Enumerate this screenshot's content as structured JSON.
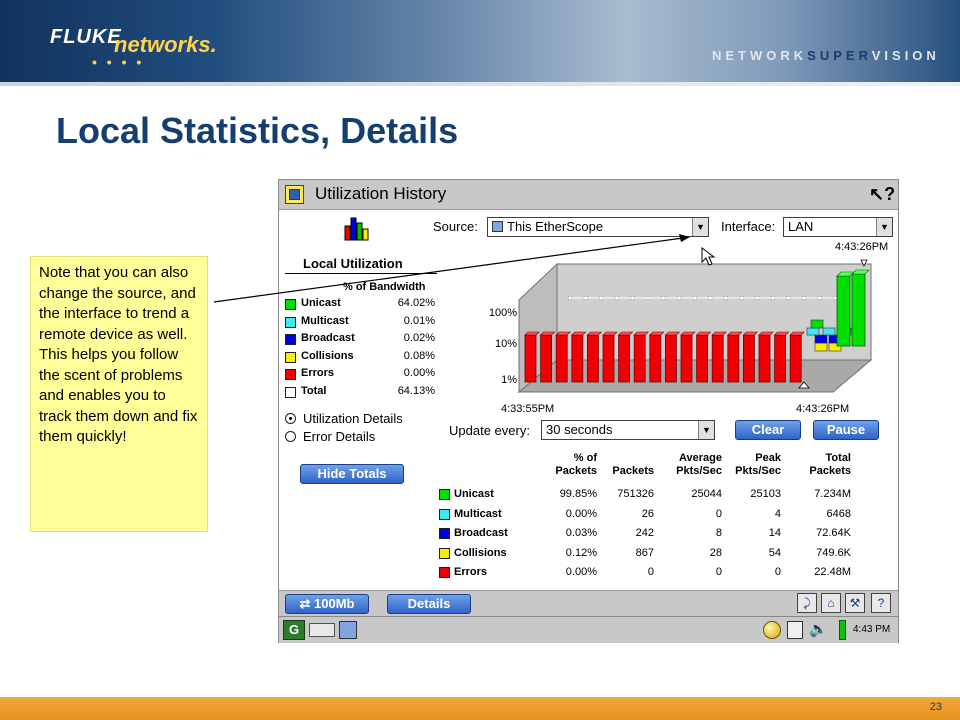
{
  "header": {
    "brand_fluke": "FLUKE",
    "brand_networks": "networks.",
    "brand_dots": "• • • •",
    "tagline_prefix": "NETWORK",
    "tagline_highlight": "SUPER",
    "tagline_suffix": "VISION"
  },
  "slide": {
    "title": "Local Statistics, Details",
    "page_number": "23"
  },
  "callout": {
    "text": "Note that you can also change the source, and the interface to trend a remote device as well.  This helps you follow the scent of problems and enables you to track them down and fix them quickly!"
  },
  "app": {
    "window_title": "Utilization History",
    "source_label": "Source:",
    "source_value": "This EtherScope",
    "interface_label": "Interface:",
    "interface_value": "LAN",
    "timestamp_top": "4:43:26PM",
    "local_util_title": "Local Utilization",
    "pct_bandwidth_header": "% of Bandwidth",
    "legend": [
      {
        "name": "Unicast",
        "value": "64.02%",
        "color": "#00e000"
      },
      {
        "name": "Multicast",
        "value": "0.01%",
        "color": "#40e8f0"
      },
      {
        "name": "Broadcast",
        "value": "0.02%",
        "color": "#0000e0"
      },
      {
        "name": "Collisions",
        "value": "0.08%",
        "color": "#f8f000"
      },
      {
        "name": "Errors",
        "value": "0.00%",
        "color": "#f00000"
      },
      {
        "name": "Total",
        "value": "64.13%",
        "color": "#ffffff"
      }
    ],
    "radio_utilization": "Utilization Details",
    "radio_error": "Error Details",
    "hide_totals": "Hide Totals",
    "update_label": "Update every:",
    "update_value": "30 seconds",
    "clear_button": "Clear",
    "pause_button": "Pause",
    "chart": {
      "y_ticks": [
        "100%",
        "10%",
        "1%"
      ],
      "x_start": "4:33:55PM",
      "x_end": "4:43:26PM"
    },
    "stats": {
      "headers": [
        [
          "% of",
          "Packets"
        ],
        [
          "",
          "Packets"
        ],
        [
          "Average",
          "Pkts/Sec"
        ],
        [
          "Peak",
          "Pkts/Sec"
        ],
        [
          "Total",
          "Packets"
        ]
      ],
      "rows": [
        {
          "name": "Unicast",
          "color": "#00e000",
          "cells": [
            "99.85%",
            "751326",
            "25044",
            "25103",
            "7.234M"
          ]
        },
        {
          "name": "Multicast",
          "color": "#40e8f0",
          "cells": [
            "0.00%",
            "26",
            "0",
            "4",
            "6468"
          ]
        },
        {
          "name": "Broadcast",
          "color": "#0000e0",
          "cells": [
            "0.03%",
            "242",
            "8",
            "14",
            "72.64K"
          ]
        },
        {
          "name": "Collisions",
          "color": "#f8f000",
          "cells": [
            "0.12%",
            "867",
            "28",
            "54",
            "749.6K"
          ]
        },
        {
          "name": "Errors",
          "color": "#f00000",
          "cells": [
            "0.00%",
            "0",
            "0",
            "0",
            "22.48M"
          ]
        }
      ]
    },
    "bottom": {
      "speed": "100Mb",
      "details": "Details",
      "clock": "4:43 PM"
    }
  }
}
